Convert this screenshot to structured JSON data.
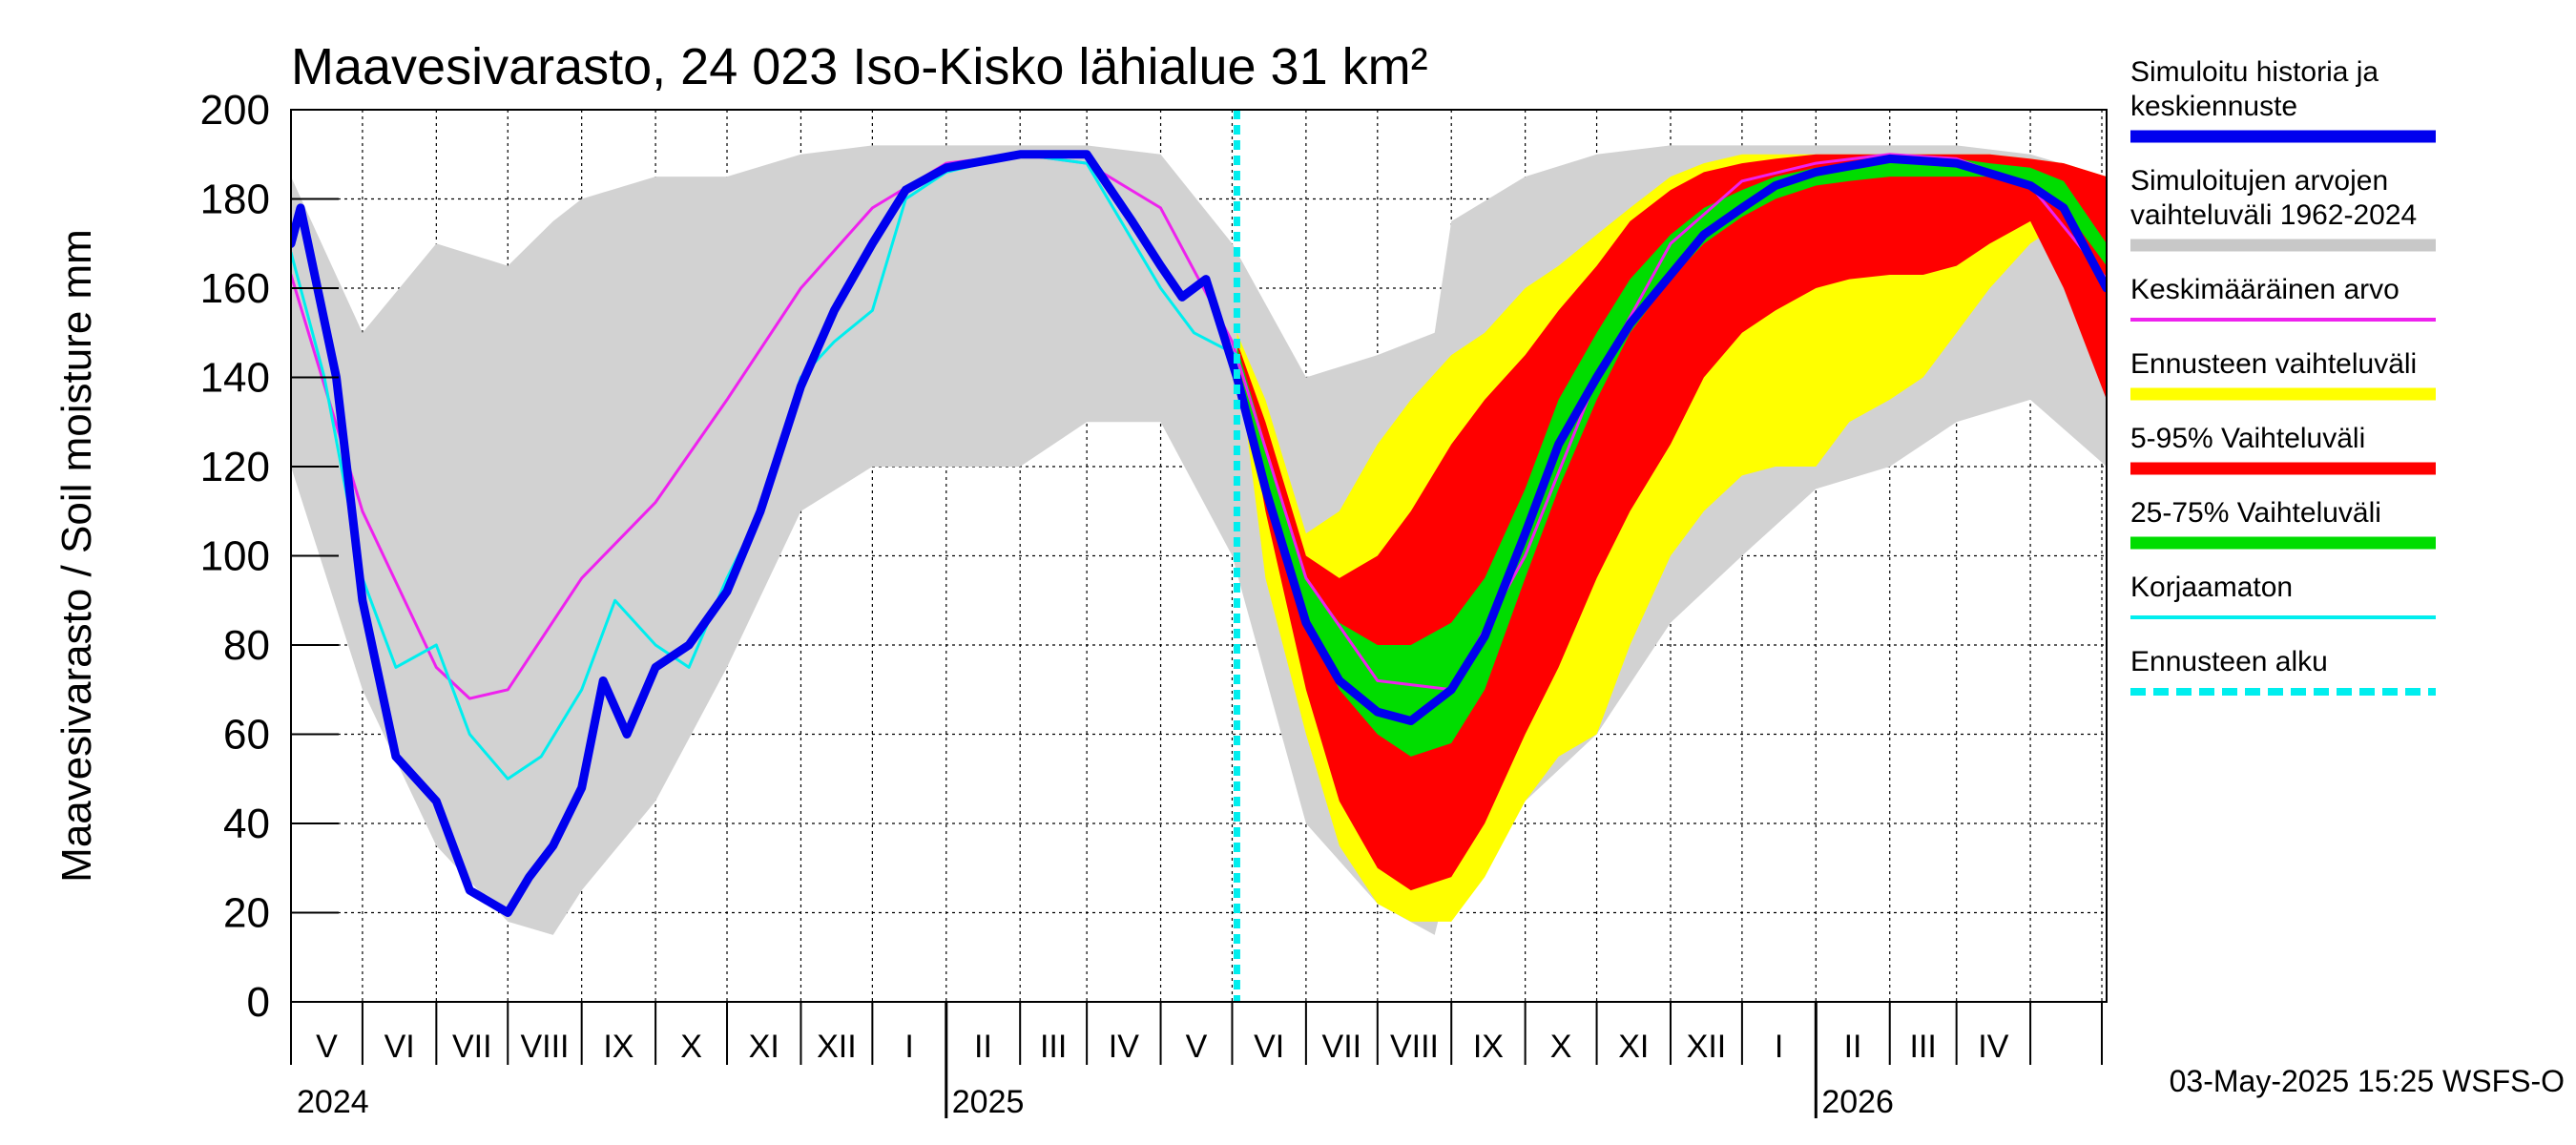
{
  "chart_data": {
    "type": "area",
    "title": "Maavesivarasto, 24 023 Iso-Kisko lähialue 31 km²",
    "ylabel": "Maavesivarasto / Soil moisture   mm",
    "ylim": [
      0,
      200
    ],
    "yticks": [
      0,
      20,
      40,
      60,
      80,
      100,
      120,
      140,
      160,
      180,
      200
    ],
    "xlim": [
      "2024-04-01",
      "2026-05-03"
    ],
    "forecast_start": "2025-05-03",
    "months": [
      "V",
      "VI",
      "VII",
      "VIII",
      "IX",
      "X",
      "XI",
      "XII",
      "I",
      "II",
      "III",
      "IV",
      "V",
      "VI",
      "VII",
      "VIII",
      "IX",
      "X",
      "XI",
      "XII",
      "I",
      "II",
      "III",
      "IV"
    ],
    "years": [
      {
        "label": "2024",
        "date": "2024-04-01"
      },
      {
        "label": "2025",
        "date": "2025-01-01"
      },
      {
        "label": "2026",
        "date": "2026-01-01"
      }
    ],
    "legend": [
      {
        "label": "Simuloitu historia ja keskiennuste",
        "lines": [
          "Simuloitu historia ja",
          "keskiennuste"
        ],
        "color": "#0000ee",
        "style": "thick"
      },
      {
        "label": "Simuloitujen arvojen vaihteluväli 1962-2024",
        "lines": [
          "Simuloitujen arvojen",
          "vaihteluväli 1962-2024"
        ],
        "color": "#c8c8c8",
        "style": "thick"
      },
      {
        "label": "Keskimääräinen arvo",
        "lines": [
          "Keskimääräinen arvo"
        ],
        "color": "#ee22ee",
        "style": "thin"
      },
      {
        "label": "Ennusteen vaihteluväli",
        "lines": [
          "Ennusteen vaihteluväli"
        ],
        "color": "#ffff00",
        "style": "thick"
      },
      {
        "label": "5-95% Vaihteluväli",
        "lines": [
          "5-95% Vaihteluväli"
        ],
        "color": "#ff0000",
        "style": "thick"
      },
      {
        "label": "25-75% Vaihteluväli",
        "lines": [
          "25-75% Vaihteluväli"
        ],
        "color": "#00dd00",
        "style": "thick"
      },
      {
        "label": "Korjaamaton",
        "lines": [
          "Korjaamaton"
        ],
        "color": "#00eeee",
        "style": "thin"
      },
      {
        "label": "Ennusteen alku",
        "lines": [
          "Ennusteen alku"
        ],
        "color": "#00eeee",
        "style": "dashed"
      }
    ],
    "footer": "03-May-2025 15:25 WSFS-O",
    "series": [
      {
        "name": "Simuloitujen arvojen vaihteluväli 1962-2024",
        "kind": "band",
        "color": "#d2d2d2",
        "x": [
          "2024-04-01",
          "2024-05-01",
          "2024-06-01",
          "2024-07-01",
          "2024-07-20",
          "2024-08-01",
          "2024-09-01",
          "2024-10-01",
          "2024-11-01",
          "2024-12-01",
          "2025-01-01",
          "2025-02-01",
          "2025-03-01",
          "2025-04-01",
          "2025-05-01",
          "2025-06-01",
          "2025-07-01",
          "2025-07-25",
          "2025-08-01",
          "2025-09-01",
          "2025-10-01",
          "2025-11-01",
          "2025-12-01",
          "2026-01-01",
          "2026-02-01",
          "2026-03-01",
          "2026-04-01",
          "2026-05-03"
        ],
        "low": [
          120,
          70,
          35,
          18,
          15,
          25,
          45,
          75,
          110,
          120,
          120,
          120,
          130,
          130,
          100,
          40,
          22,
          15,
          30,
          45,
          60,
          85,
          100,
          115,
          120,
          130,
          135,
          120
        ],
        "high": [
          185,
          150,
          170,
          165,
          175,
          180,
          185,
          185,
          190,
          192,
          192,
          192,
          192,
          190,
          170,
          140,
          145,
          150,
          175,
          185,
          190,
          192,
          192,
          192,
          192,
          192,
          190,
          185
        ]
      },
      {
        "name": "Ennusteen vaihteluväli",
        "kind": "band",
        "color": "#ffff00",
        "x": [
          "2025-05-03",
          "2025-05-15",
          "2025-06-01",
          "2025-06-15",
          "2025-07-01",
          "2025-07-15",
          "2025-08-01",
          "2025-08-15",
          "2025-09-01",
          "2025-09-15",
          "2025-10-01",
          "2025-10-15",
          "2025-11-01",
          "2025-11-15",
          "2025-12-01",
          "2025-12-15",
          "2026-01-01",
          "2026-01-15",
          "2026-02-01",
          "2026-02-15",
          "2026-03-01",
          "2026-03-15",
          "2026-04-01",
          "2026-04-15",
          "2026-05-03"
        ],
        "low": [
          145,
          95,
          60,
          35,
          22,
          18,
          18,
          28,
          45,
          55,
          60,
          80,
          100,
          110,
          118,
          120,
          120,
          130,
          135,
          140,
          150,
          160,
          170,
          175,
          180
        ],
        "high": [
          150,
          135,
          105,
          110,
          125,
          135,
          145,
          150,
          160,
          165,
          172,
          178,
          185,
          188,
          190,
          190,
          190,
          190,
          190,
          190,
          190,
          190,
          189,
          188,
          185
        ]
      },
      {
        "name": "5-95% Vaihteluväli",
        "kind": "band",
        "color": "#ff0000",
        "x": [
          "2025-05-03",
          "2025-05-15",
          "2025-06-01",
          "2025-06-15",
          "2025-07-01",
          "2025-07-15",
          "2025-08-01",
          "2025-08-15",
          "2025-09-01",
          "2025-09-15",
          "2025-10-01",
          "2025-10-15",
          "2025-11-01",
          "2025-11-15",
          "2025-12-01",
          "2025-12-15",
          "2026-01-01",
          "2026-01-15",
          "2026-02-01",
          "2026-02-15",
          "2026-03-01",
          "2026-03-15",
          "2026-04-01",
          "2026-04-15",
          "2026-05-03"
        ],
        "low": [
          145,
          110,
          70,
          45,
          30,
          25,
          28,
          40,
          60,
          75,
          95,
          110,
          125,
          140,
          150,
          155,
          160,
          162,
          163,
          163,
          165,
          170,
          175,
          160,
          135
        ],
        "high": [
          148,
          130,
          100,
          95,
          100,
          110,
          125,
          135,
          145,
          155,
          165,
          175,
          182,
          186,
          188,
          189,
          190,
          190,
          190,
          190,
          190,
          190,
          189,
          188,
          185
        ]
      },
      {
        "name": "25-75% Vaihteluväli",
        "kind": "band",
        "color": "#00dd00",
        "x": [
          "2025-05-03",
          "2025-05-15",
          "2025-06-01",
          "2025-06-15",
          "2025-07-01",
          "2025-07-15",
          "2025-08-01",
          "2025-08-15",
          "2025-09-01",
          "2025-09-15",
          "2025-10-01",
          "2025-10-15",
          "2025-11-01",
          "2025-11-15",
          "2025-12-01",
          "2025-12-15",
          "2026-01-01",
          "2026-01-15",
          "2026-02-01",
          "2026-02-15",
          "2026-03-01",
          "2026-03-15",
          "2026-04-01",
          "2026-04-15",
          "2026-05-03"
        ],
        "low": [
          145,
          115,
          85,
          70,
          60,
          55,
          58,
          70,
          95,
          115,
          135,
          150,
          162,
          170,
          176,
          180,
          183,
          184,
          185,
          185,
          185,
          185,
          183,
          178,
          165
        ],
        "high": [
          147,
          125,
          95,
          85,
          80,
          80,
          85,
          95,
          115,
          135,
          150,
          162,
          172,
          178,
          182,
          185,
          187,
          188,
          189,
          189,
          189,
          188,
          187,
          184,
          170
        ]
      },
      {
        "name": "Keskimääräinen arvo",
        "kind": "line",
        "color": "#ee22ee",
        "width": 3,
        "x": [
          "2024-04-01",
          "2024-05-01",
          "2024-06-01",
          "2024-06-15",
          "2024-07-01",
          "2024-08-01",
          "2024-09-01",
          "2024-10-01",
          "2024-11-01",
          "2024-12-01",
          "2025-01-01",
          "2025-02-01",
          "2025-03-01",
          "2025-04-01",
          "2025-05-01",
          "2025-06-01",
          "2025-07-01",
          "2025-08-01",
          "2025-09-01",
          "2025-10-01",
          "2025-11-01",
          "2025-12-01",
          "2026-01-01",
          "2026-02-01",
          "2026-03-01",
          "2026-04-01",
          "2026-05-03"
        ],
        "y": [
          163,
          110,
          75,
          68,
          70,
          95,
          112,
          135,
          160,
          178,
          188,
          190,
          188,
          178,
          148,
          95,
          72,
          70,
          100,
          140,
          170,
          184,
          188,
          190,
          189,
          183,
          162
        ]
      },
      {
        "name": "Korjaamaton",
        "kind": "line",
        "color": "#00eeee",
        "width": 3,
        "x": [
          "2024-04-01",
          "2024-04-15",
          "2024-05-01",
          "2024-05-15",
          "2024-06-01",
          "2024-06-15",
          "2024-07-01",
          "2024-07-15",
          "2024-08-01",
          "2024-08-15",
          "2024-09-01",
          "2024-09-15",
          "2024-10-01",
          "2024-10-15",
          "2024-11-01",
          "2024-11-15",
          "2024-12-01",
          "2024-12-15",
          "2025-01-01",
          "2025-02-01",
          "2025-03-01",
          "2025-04-01",
          "2025-04-15",
          "2025-05-03"
        ],
        "y": [
          168,
          140,
          95,
          75,
          80,
          60,
          50,
          55,
          70,
          90,
          80,
          75,
          95,
          110,
          140,
          148,
          155,
          180,
          186,
          190,
          188,
          160,
          150,
          145
        ]
      },
      {
        "name": "Simuloitu historia ja keskiennuste",
        "kind": "line",
        "color": "#0000ee",
        "width": 9,
        "x": [
          "2024-04-01",
          "2024-04-05",
          "2024-04-20",
          "2024-05-01",
          "2024-05-15",
          "2024-06-01",
          "2024-06-15",
          "2024-07-01",
          "2024-07-10",
          "2024-07-20",
          "2024-08-01",
          "2024-08-10",
          "2024-08-20",
          "2024-09-01",
          "2024-09-15",
          "2024-10-01",
          "2024-10-15",
          "2024-11-01",
          "2024-11-15",
          "2024-12-01",
          "2024-12-15",
          "2025-01-01",
          "2025-02-01",
          "2025-03-01",
          "2025-03-20",
          "2025-04-01",
          "2025-04-10",
          "2025-04-20",
          "2025-05-03",
          "2025-05-15",
          "2025-06-01",
          "2025-06-15",
          "2025-07-01",
          "2025-07-15",
          "2025-08-01",
          "2025-08-15",
          "2025-09-01",
          "2025-09-15",
          "2025-10-01",
          "2025-10-15",
          "2025-11-01",
          "2025-11-15",
          "2025-12-01",
          "2025-12-15",
          "2026-01-01",
          "2026-02-01",
          "2026-03-01",
          "2026-04-01",
          "2026-04-15",
          "2026-05-03"
        ],
        "y": [
          170,
          178,
          140,
          90,
          55,
          45,
          25,
          20,
          28,
          35,
          48,
          72,
          60,
          75,
          80,
          92,
          110,
          138,
          155,
          170,
          182,
          187,
          190,
          190,
          175,
          165,
          158,
          162,
          140,
          115,
          85,
          72,
          65,
          63,
          70,
          82,
          105,
          125,
          140,
          152,
          163,
          172,
          178,
          183,
          186,
          189,
          188,
          183,
          178,
          160
        ]
      }
    ]
  }
}
